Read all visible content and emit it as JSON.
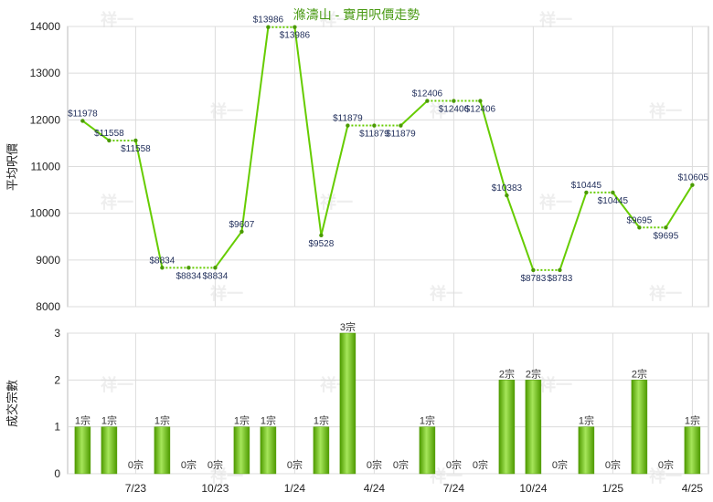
{
  "chart_data": [
    {
      "type": "line",
      "title": "滌濤山 - 實用呎價走勢",
      "ylabel": "平均呎價",
      "ylim": [
        8000,
        14000
      ],
      "yticks": [
        8000,
        9000,
        10000,
        11000,
        12000,
        13000,
        14000
      ],
      "x_tick_labels": [
        "7/23",
        "10/23",
        "1/24",
        "4/24",
        "7/24",
        "10/24",
        "1/25",
        "4/25"
      ],
      "series": [
        {
          "values": [
            11978,
            11558,
            11558,
            8834,
            8834,
            8834,
            9607,
            13986,
            13986,
            9528,
            11879,
            11879,
            11879,
            12406,
            12406,
            12406,
            10383,
            8783,
            8783,
            10445,
            10445,
            9695,
            9695,
            10605
          ],
          "labels": [
            "$11978",
            "$11558",
            "$11558",
            "$8834",
            "$8834",
            "$8834",
            "$9607",
            "$13986",
            "$13986",
            "$9528",
            "$11879",
            "$11879",
            "$11879",
            "$12406",
            "$12406",
            "$12406",
            "$10383",
            "$8783",
            "$8783",
            "$10445",
            "$10445",
            "$9695",
            "$9695",
            "$10605"
          ],
          "carried_forward": [
            false,
            false,
            true,
            false,
            true,
            true,
            false,
            false,
            true,
            false,
            false,
            true,
            true,
            false,
            true,
            true,
            false,
            false,
            true,
            false,
            true,
            false,
            true,
            false
          ]
        }
      ],
      "line_color": "#66cc00"
    },
    {
      "type": "bar",
      "ylabel": "成交宗數",
      "ylim": [
        0,
        3
      ],
      "yticks": [
        0,
        1,
        2,
        3
      ],
      "values": [
        1,
        1,
        0,
        1,
        0,
        0,
        1,
        1,
        0,
        1,
        3,
        0,
        0,
        1,
        0,
        0,
        2,
        2,
        0,
        1,
        0,
        2,
        0,
        1
      ],
      "labels": [
        "1宗",
        "1宗",
        "0宗",
        "1宗",
        "0宗",
        "0宗",
        "1宗",
        "1宗",
        "0宗",
        "1宗",
        "3宗",
        "0宗",
        "0宗",
        "1宗",
        "0宗",
        "0宗",
        "2宗",
        "2宗",
        "0宗",
        "1宗",
        "0宗",
        "2宗",
        "0宗",
        "1宗"
      ],
      "bar_color": "#66bb00"
    }
  ],
  "watermark": "祥一"
}
